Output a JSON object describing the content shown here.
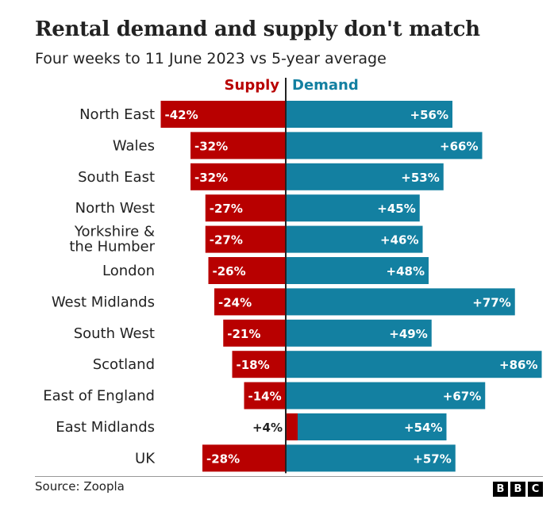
{
  "title": "Rental demand and supply don't match",
  "subtitle": "Four weeks to 11 June 2023 vs 5-year average",
  "source": "Source: Zoopla",
  "logo": [
    "B",
    "B",
    "C"
  ],
  "colors": {
    "supply": "#b80000",
    "demand": "#1380a1",
    "text": "#222222"
  },
  "chart_data": {
    "type": "bar",
    "orientation": "horizontal-diverging",
    "categories": [
      "North East",
      "Wales",
      "South East",
      "North West",
      "Yorkshire & the Humber",
      "London",
      "West Midlands",
      "South West",
      "Scotland",
      "East of England",
      "East Midlands",
      "UK"
    ],
    "series": [
      {
        "name": "Supply",
        "values": [
          -42,
          -32,
          -32,
          -27,
          -27,
          -26,
          -24,
          -21,
          -18,
          -14,
          4,
          -28
        ],
        "labels": [
          "-42%",
          "-32%",
          "-32%",
          "-27%",
          "-27%",
          "-26%",
          "-24%",
          "-21%",
          "-18%",
          "-14%",
          "+4%",
          "-28%"
        ]
      },
      {
        "name": "Demand",
        "values": [
          56,
          66,
          53,
          45,
          46,
          48,
          77,
          49,
          86,
          67,
          54,
          57
        ],
        "labels": [
          "+56%",
          "+66%",
          "+53%",
          "+45%",
          "+46%",
          "+48%",
          "+77%",
          "+49%",
          "+86%",
          "+67%",
          "+54%",
          "+57%"
        ]
      }
    ],
    "unit": "%"
  }
}
